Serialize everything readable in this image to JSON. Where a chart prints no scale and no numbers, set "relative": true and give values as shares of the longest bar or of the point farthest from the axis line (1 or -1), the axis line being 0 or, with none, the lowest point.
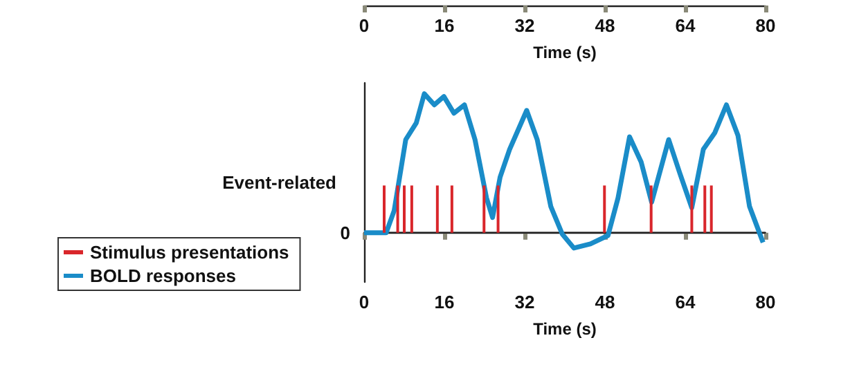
{
  "chart_data": {
    "type": "line",
    "relative": true,
    "ylabel": "Event-related",
    "xlim": [
      0,
      80
    ],
    "xticks": [
      0,
      16,
      32,
      48,
      64,
      80
    ],
    "xlabel": "Time (s)",
    "x2lim": [
      0,
      80
    ],
    "x2ticks": [
      0,
      16,
      32,
      48,
      64,
      80
    ],
    "x2label": "Time (s)",
    "legend": "bottom left",
    "grid": false,
    "annotations": [
      "0"
    ],
    "series": [
      {
        "name": "Stimulus presentations",
        "type": "bar",
        "color": "#d9262b",
        "x": [
          4,
          6.7,
          8,
          9.5,
          14.6,
          17.5,
          23.9,
          26.7,
          47.9,
          57.2,
          65.3,
          67.9,
          69.2
        ],
        "values": [
          0.34,
          0.34,
          0.34,
          0.34,
          0.34,
          0.34,
          0.34,
          0.34,
          0.34,
          0.34,
          0.34,
          0.34,
          0.34
        ]
      },
      {
        "name": "BOLD responses",
        "color": "#1a8cc8",
        "x": [
          0,
          4.4,
          6,
          8.3,
          10.4,
          12,
          14,
          15.9,
          17.9,
          20,
          22.1,
          24.4,
          25.6,
          27.1,
          29,
          32.4,
          34.5,
          37.2,
          39.5,
          41.8,
          45.1,
          48.6,
          50.6,
          52.9,
          55.2,
          57.3,
          60.7,
          62.9,
          65.3,
          67.6,
          69.9,
          72.2,
          74.5,
          76.8,
          79.5
        ],
        "values": [
          0,
          0,
          0.16,
          0.67,
          0.79,
          1,
          0.92,
          0.98,
          0.86,
          0.92,
          0.67,
          0.25,
          0.11,
          0.4,
          0.6,
          0.88,
          0.67,
          0.19,
          -0.01,
          -0.11,
          -0.08,
          -0.02,
          0.25,
          0.69,
          0.51,
          0.22,
          0.67,
          0.43,
          0.18,
          0.6,
          0.72,
          0.92,
          0.7,
          0.19,
          -0.07
        ]
      }
    ]
  }
}
